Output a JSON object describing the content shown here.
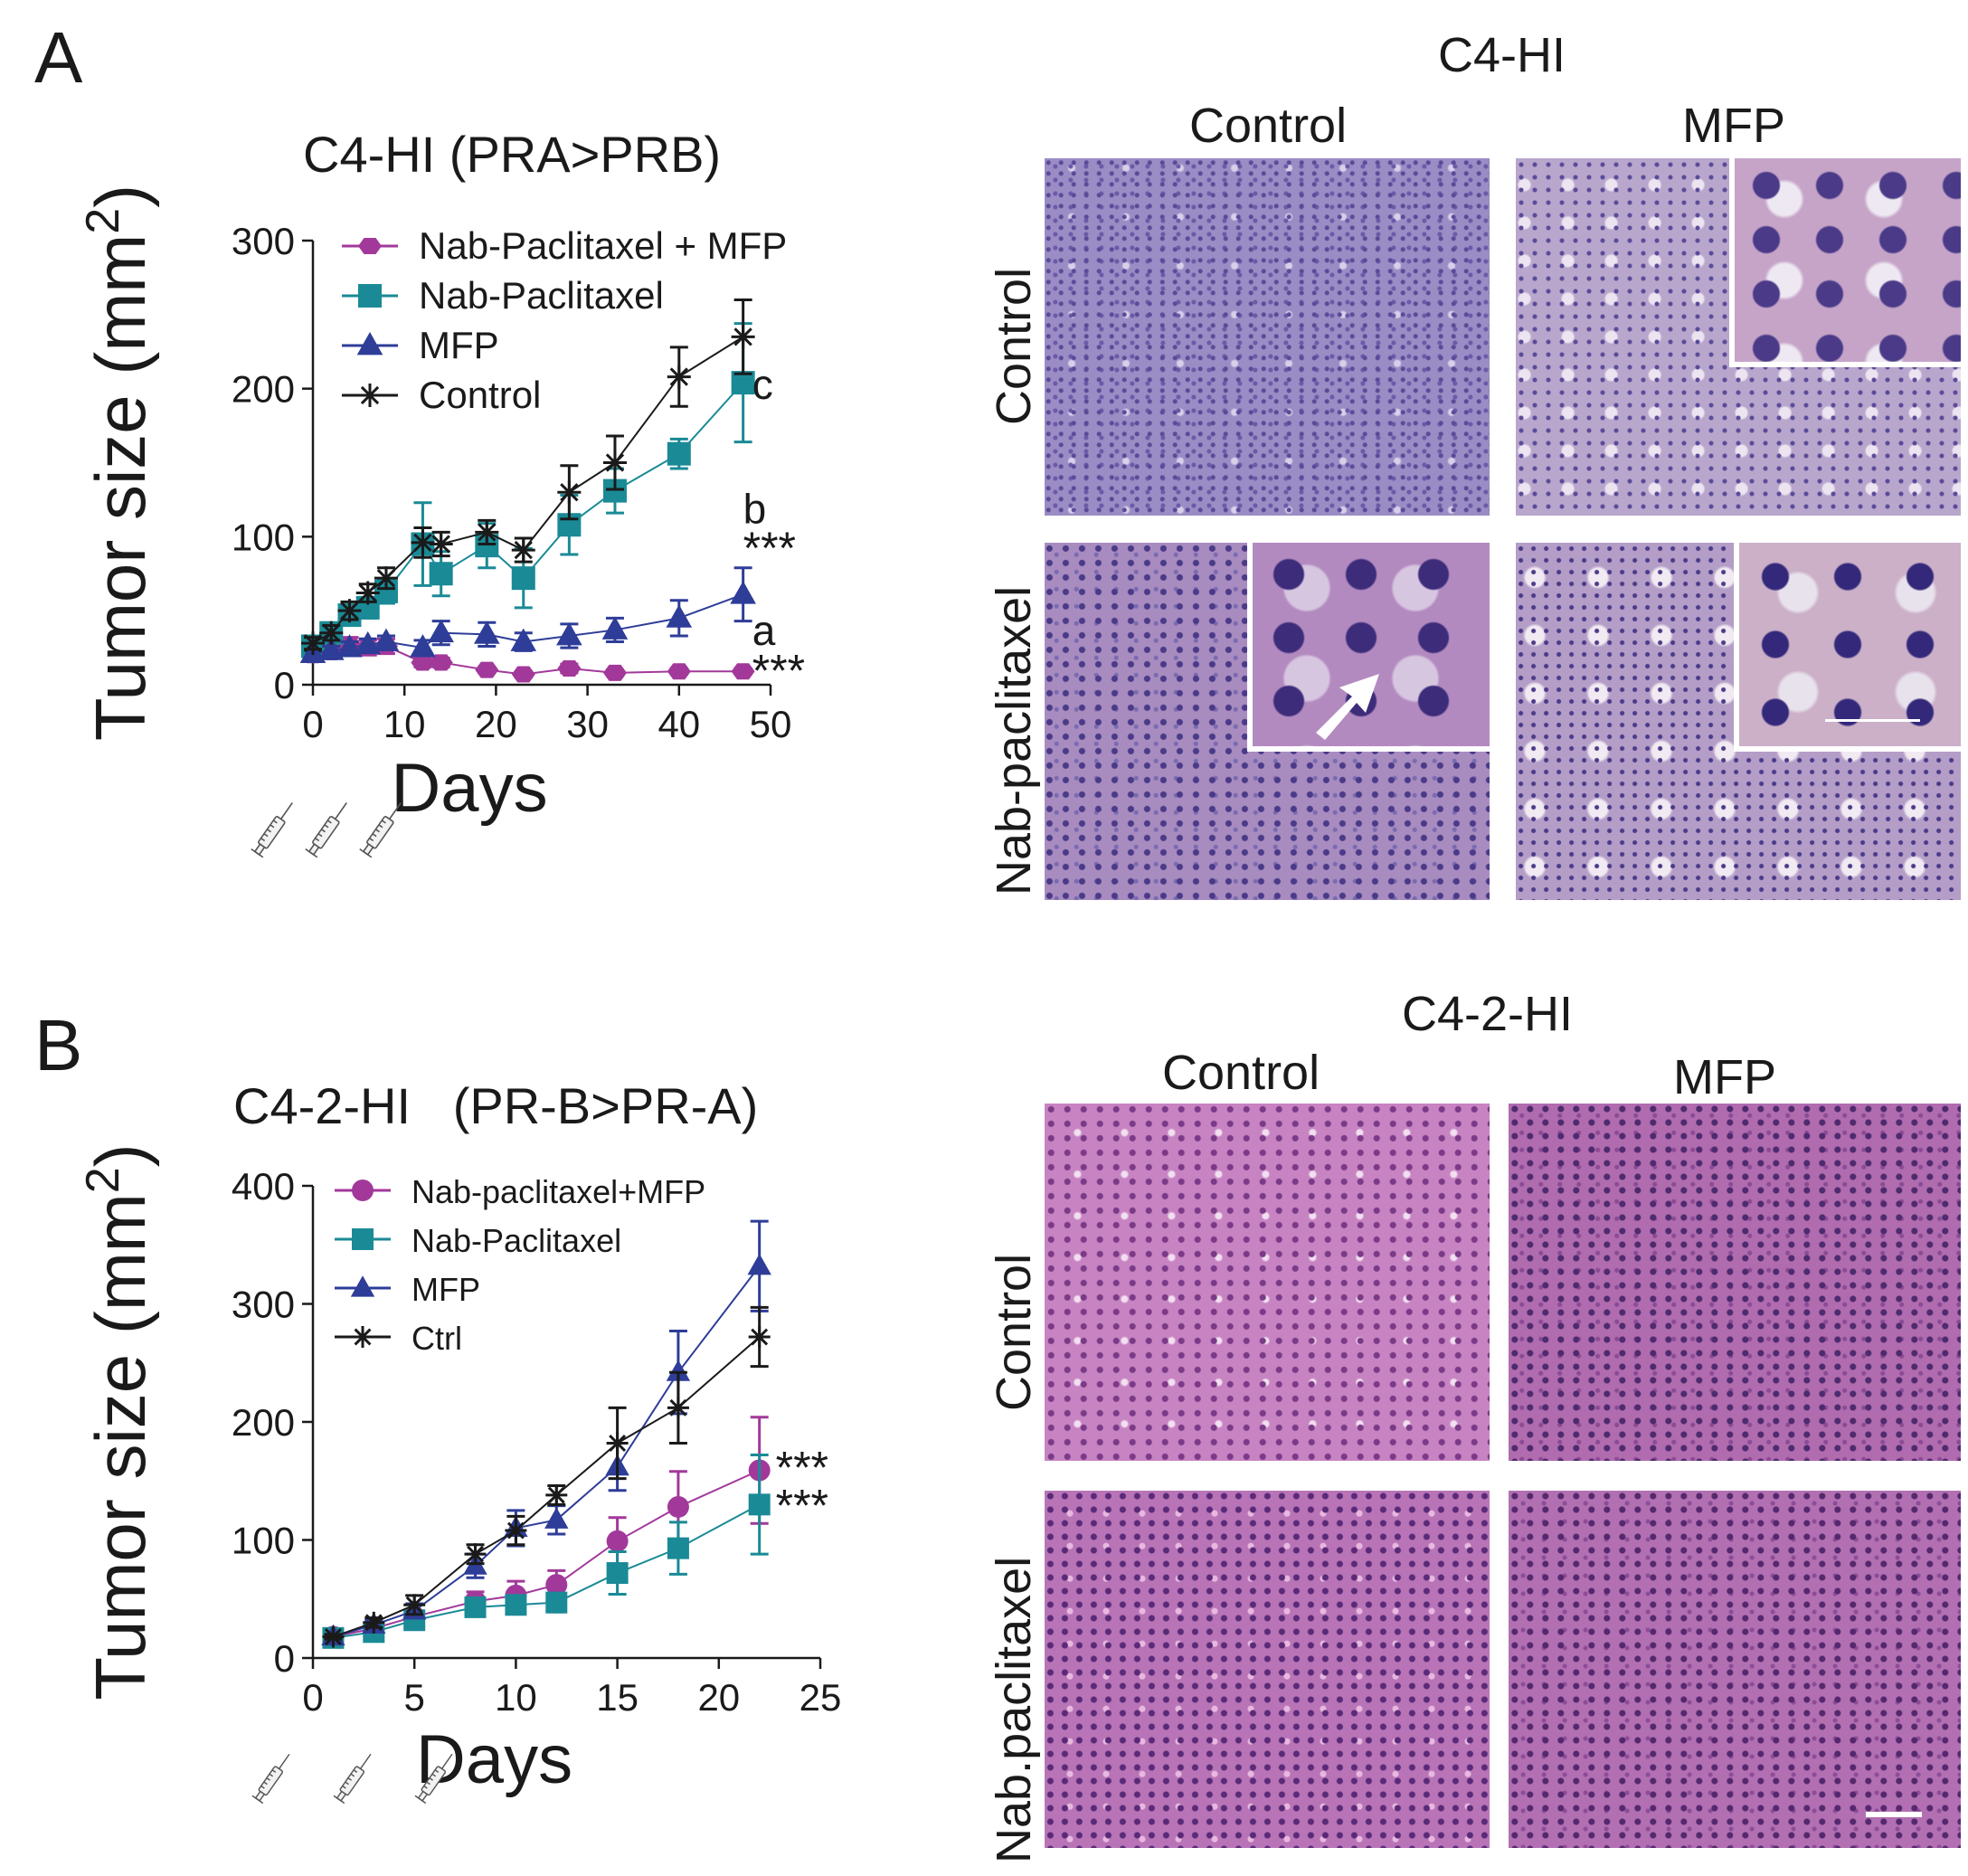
{
  "panels": [
    {
      "letter": "A"
    },
    {
      "letter": "B"
    }
  ],
  "chart_data": [
    {
      "type": "line",
      "title": "C4-HI (PRA>PRB)",
      "xlabel": "Days",
      "ylabel": "Tumor size (mm2)",
      "xlim": [
        0,
        50
      ],
      "ylim": [
        0,
        300
      ],
      "xticks": [
        0,
        10,
        20,
        30,
        40,
        50
      ],
      "yticks": [
        0,
        100,
        200,
        300
      ],
      "grid": false,
      "legend_position": "top-left",
      "series": [
        {
          "name": "Nab-Paclitaxel + MFP",
          "color": "#a2399a",
          "marker": "hexagon",
          "x": [
            0,
            2,
            4,
            6,
            8,
            12,
            14,
            19,
            23,
            28,
            33,
            40,
            47
          ],
          "y": [
            20,
            22,
            27,
            25,
            26,
            15,
            15,
            10,
            7,
            11,
            8,
            9,
            9
          ],
          "err": [
            4,
            4,
            5,
            5,
            5,
            3,
            3,
            2,
            2,
            3,
            2,
            2,
            2
          ]
        },
        {
          "name": "Nab-Paclitaxel",
          "color": "#1a8a96",
          "marker": "square",
          "x": [
            0,
            2,
            4,
            6,
            8,
            12,
            14,
            19,
            23,
            28,
            33,
            40,
            47
          ],
          "y": [
            26,
            35,
            47,
            52,
            63,
            95,
            75,
            94,
            72,
            108,
            131,
            156,
            204
          ],
          "err": [
            4,
            5,
            6,
            7,
            8,
            28,
            15,
            15,
            20,
            20,
            15,
            10,
            40
          ]
        },
        {
          "name": "MFP",
          "color": "#2e3d98",
          "marker": "triangle",
          "x": [
            0,
            2,
            4,
            6,
            8,
            12,
            14,
            19,
            23,
            28,
            33,
            40,
            47
          ],
          "y": [
            21,
            23,
            25,
            27,
            29,
            25,
            35,
            34,
            29,
            33,
            37,
            45,
            61
          ],
          "err": [
            3,
            3,
            4,
            4,
            4,
            5,
            8,
            8,
            6,
            8,
            8,
            12,
            18
          ]
        },
        {
          "name": "Control",
          "color": "#1a1a1a",
          "marker": "star",
          "x": [
            0,
            2,
            4,
            6,
            8,
            12,
            14,
            19,
            23,
            28,
            33,
            40,
            47
          ],
          "y": [
            28,
            35,
            50,
            62,
            72,
            96,
            95,
            103,
            91,
            130,
            150,
            208,
            235
          ],
          "err": [
            4,
            5,
            6,
            6,
            7,
            10,
            8,
            8,
            8,
            18,
            18,
            20,
            25
          ]
        }
      ],
      "annotations": [
        {
          "text": "c",
          "x": 48,
          "y": 204
        },
        {
          "text": "b",
          "x": 47,
          "y": 120
        },
        {
          "text": "***",
          "x": 47,
          "y": 93
        },
        {
          "text": "a",
          "x": 48,
          "y": 38
        },
        {
          "text": "***",
          "x": 48,
          "y": 10
        }
      ],
      "injections": 3
    },
    {
      "type": "line",
      "title": "C4-2-HI   (PR-B>PR-A)",
      "xlabel": "Days",
      "ylabel": "Tumor size (mm2)",
      "xlim": [
        0,
        25
      ],
      "ylim": [
        0,
        400
      ],
      "xticks": [
        0,
        5,
        10,
        15,
        20,
        25
      ],
      "yticks": [
        0,
        100,
        200,
        300,
        400
      ],
      "grid": false,
      "legend_position": "top-left",
      "series": [
        {
          "name": "Nab-paclitaxel+MFP",
          "color": "#a2399a",
          "marker": "circle",
          "x": [
            1,
            3,
            5,
            8,
            10,
            12,
            15,
            18,
            22
          ],
          "y": [
            18,
            25,
            35,
            48,
            53,
            62,
            99,
            128,
            159
          ],
          "err": [
            2,
            3,
            5,
            8,
            12,
            12,
            20,
            30,
            45
          ]
        },
        {
          "name": "Nab-Paclitaxel",
          "color": "#1a8a96",
          "marker": "square",
          "x": [
            1,
            3,
            5,
            8,
            10,
            12,
            15,
            18,
            22
          ],
          "y": [
            17,
            22,
            32,
            43,
            45,
            47,
            72,
            93,
            130
          ],
          "err": [
            2,
            3,
            4,
            5,
            6,
            8,
            18,
            22,
            42
          ]
        },
        {
          "name": "MFP",
          "color": "#2e3d98",
          "marker": "triangle",
          "x": [
            1,
            3,
            5,
            8,
            10,
            12,
            15,
            18,
            22
          ],
          "y": [
            18,
            28,
            40,
            78,
            110,
            117,
            162,
            242,
            332
          ],
          "err": [
            2,
            4,
            6,
            10,
            15,
            12,
            20,
            35,
            38
          ]
        },
        {
          "name": "Ctrl",
          "color": "#1a1a1a",
          "marker": "star",
          "x": [
            1,
            3,
            5,
            8,
            10,
            12,
            15,
            18,
            22
          ],
          "y": [
            18,
            30,
            45,
            88,
            108,
            138,
            182,
            212,
            272
          ],
          "err": [
            2,
            4,
            8,
            8,
            12,
            8,
            30,
            30,
            25
          ]
        }
      ],
      "annotations": [
        {
          "text": "***",
          "x": 22.8,
          "y": 162
        },
        {
          "text": "***",
          "x": 22.8,
          "y": 130
        }
      ],
      "injections": 3
    }
  ],
  "histology": [
    {
      "title": "C4-HI",
      "col_labels": [
        "Control",
        "MFP"
      ],
      "row_labels": [
        "Control",
        "Nab-paclitaxel"
      ],
      "stain_colors": [
        "#9a8cc4",
        "#5a4a98"
      ]
    },
    {
      "title": "C4-2-HI",
      "col_labels": [
        "Control",
        "MFP"
      ],
      "row_labels": [
        "Control",
        "Nab.paclitaxel"
      ],
      "stain_colors": [
        "#c783c2",
        "#7a3a86"
      ]
    }
  ]
}
